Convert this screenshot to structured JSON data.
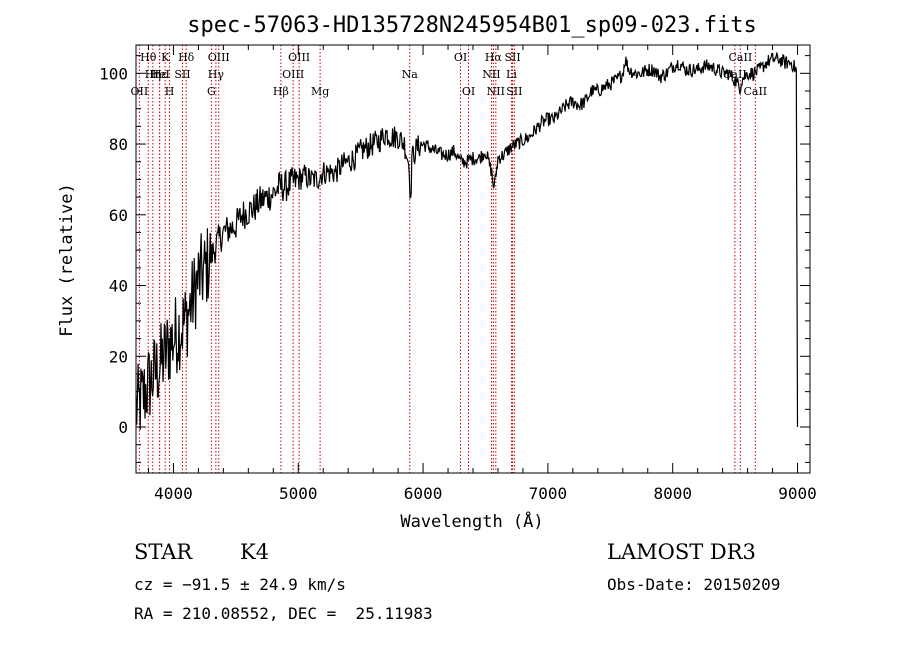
{
  "chart_data": {
    "type": "line",
    "title": "spec-57063-HD135728N245954B01_sp09-023.fits",
    "xlabel": "Wavelength (Å)",
    "ylabel": "Flux (relative)",
    "xlim": [
      3700,
      9100
    ],
    "ylim": [
      -13,
      108
    ],
    "x_ticks": [
      4000,
      5000,
      6000,
      7000,
      8000,
      9000
    ],
    "y_ticks": [
      0,
      20,
      40,
      60,
      80,
      100
    ],
    "series": [
      {
        "name": "flux",
        "x": [
          3700,
          3750,
          3800,
          3850,
          3900,
          3950,
          4000,
          4050,
          4100,
          4150,
          4200,
          4250,
          4300,
          4350,
          4400,
          4450,
          4500,
          4550,
          4600,
          4650,
          4700,
          4750,
          4800,
          4850,
          4900,
          4950,
          5000,
          5050,
          5100,
          5150,
          5200,
          5250,
          5300,
          5350,
          5400,
          5450,
          5500,
          5550,
          5600,
          5650,
          5700,
          5750,
          5800,
          5850,
          5890,
          5900,
          5910,
          5950,
          6000,
          6050,
          6100,
          6150,
          6200,
          6250,
          6300,
          6350,
          6400,
          6450,
          6500,
          6550,
          6563,
          6580,
          6600,
          6650,
          6700,
          6750,
          6800,
          6850,
          6900,
          6950,
          7000,
          7050,
          7100,
          7150,
          7200,
          7250,
          7300,
          7350,
          7400,
          7450,
          7500,
          7550,
          7600,
          7620,
          7650,
          7700,
          7750,
          7800,
          7850,
          7900,
          7950,
          8000,
          8050,
          8100,
          8150,
          8200,
          8250,
          8300,
          8350,
          8400,
          8450,
          8500,
          8542,
          8550,
          8600,
          8650,
          8700,
          8750,
          8800,
          8850,
          8900,
          8950,
          8990,
          9000
        ],
        "y": [
          5,
          8,
          12,
          15,
          18,
          22,
          25,
          28,
          30,
          36,
          42,
          44,
          48,
          52,
          55,
          56,
          57,
          60,
          61,
          62,
          64,
          65,
          66,
          68,
          68,
          69,
          70,
          71,
          70,
          70,
          72,
          72,
          72,
          74,
          75,
          76,
          78,
          79,
          80,
          81,
          83,
          82,
          82,
          80,
          74,
          62,
          76,
          79,
          80,
          79,
          78,
          77,
          77,
          78,
          75,
          75,
          76,
          76,
          78,
          72,
          68,
          70,
          76,
          77,
          79,
          80,
          81,
          82,
          84,
          86,
          87,
          87,
          89,
          91,
          92,
          91,
          92,
          95,
          95,
          96,
          97,
          98,
          100,
          104,
          101,
          100,
          100,
          101,
          101,
          99,
          100,
          102,
          103,
          101,
          101,
          101,
          102,
          102,
          101,
          100,
          100,
          98,
          96,
          98,
          100,
          100,
          101,
          103,
          104,
          104,
          103,
          103,
          101,
          0
        ]
      }
    ],
    "annotations": [
      {
        "label": "OII",
        "wavelength": 3727,
        "row": 3
      },
      {
        "label": "Hθ",
        "wavelength": 3798,
        "row": 1
      },
      {
        "label": "Hη",
        "wavelength": 3835,
        "row": 2
      },
      {
        "label": "Hε",
        "wavelength": 3889,
        "row": 2
      },
      {
        "label": "HeI",
        "wavelength": 3889,
        "row": 2
      },
      {
        "label": "K",
        "wavelength": 3934,
        "row": 1
      },
      {
        "label": "H",
        "wavelength": 3969,
        "row": 3
      },
      {
        "label": "SII",
        "wavelength": 4072,
        "row": 2
      },
      {
        "label": "Hδ",
        "wavelength": 4102,
        "row": 1
      },
      {
        "label": "G",
        "wavelength": 4304,
        "row": 3
      },
      {
        "label": "Hγ",
        "wavelength": 4340,
        "row": 2
      },
      {
        "label": "OIII",
        "wavelength": 4363,
        "row": 1
      },
      {
        "label": "Hβ",
        "wavelength": 4861,
        "row": 3
      },
      {
        "label": "OIII",
        "wavelength": 4959,
        "row": 2
      },
      {
        "label": "OIII",
        "wavelength": 5007,
        "row": 1
      },
      {
        "label": "Mg",
        "wavelength": 5175,
        "row": 3
      },
      {
        "label": "Na",
        "wavelength": 5893,
        "row": 2
      },
      {
        "label": "OI",
        "wavelength": 6300,
        "row": 1
      },
      {
        "label": "OI",
        "wavelength": 6364,
        "row": 3
      },
      {
        "label": "NII",
        "wavelength": 6548,
        "row": 2
      },
      {
        "label": "Hα",
        "wavelength": 6563,
        "row": 1
      },
      {
        "label": "NII",
        "wavelength": 6583,
        "row": 3
      },
      {
        "label": "Li",
        "wavelength": 6708,
        "row": 2
      },
      {
        "label": "SII",
        "wavelength": 6717,
        "row": 1
      },
      {
        "label": "SII",
        "wavelength": 6731,
        "row": 3
      },
      {
        "label": "CaII",
        "wavelength": 8498,
        "row": 2
      },
      {
        "label": "CaII",
        "wavelength": 8542,
        "row": 1
      },
      {
        "label": "CaII",
        "wavelength": 8662,
        "row": 3
      }
    ]
  },
  "info": {
    "object_class": "STAR",
    "subclass": "K4",
    "survey": "LAMOST DR3",
    "redshift": "cz = −91.5 ± 24.9 km/s",
    "obs_date": "Obs-Date: 20150209",
    "coords": "RA = 210.08552, DEC =  25.11983"
  },
  "colors": {
    "axis": "#000000",
    "spectrum": "#000000",
    "line_marker": "#cc0000"
  }
}
